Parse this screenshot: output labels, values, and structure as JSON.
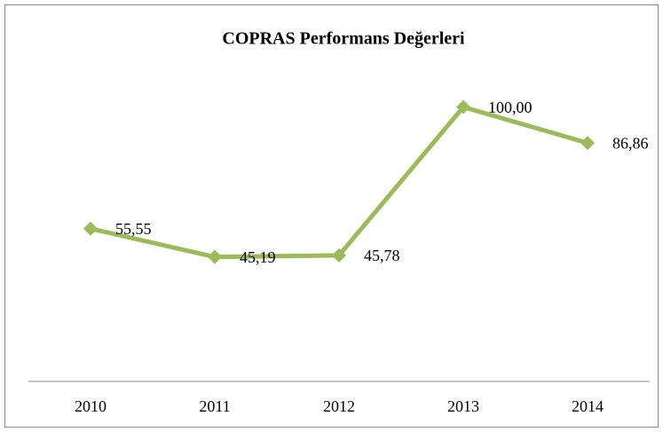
{
  "chart_data": {
    "type": "line",
    "title": "COPRAS Performans Değerleri",
    "categories": [
      "2010",
      "2011",
      "2012",
      "2013",
      "2014"
    ],
    "values": [
      55.55,
      45.19,
      45.78,
      100,
      86.86
    ],
    "value_labels": [
      "55,55",
      "45,19",
      "45,78",
      "100,00",
      "86,86"
    ],
    "color": "#9bbb59",
    "ylim": [
      0,
      120
    ]
  }
}
